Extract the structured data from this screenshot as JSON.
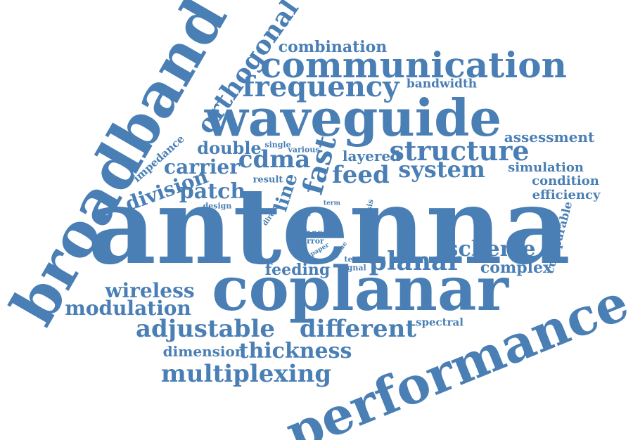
{
  "cloud": {
    "color": "#4a7fb5",
    "words": [
      {
        "text": "antenna",
        "rot": 0
      },
      {
        "text": "broadband",
        "rot": -60
      },
      {
        "text": "coplanar",
        "rot": 0
      },
      {
        "text": "performance",
        "rot": -22
      },
      {
        "text": "waveguide",
        "rot": 0
      },
      {
        "text": "communication",
        "rot": 0
      },
      {
        "text": "orthogonal",
        "rot": -55
      },
      {
        "text": "frequency",
        "rot": 0
      },
      {
        "text": "combination",
        "rot": 0
      },
      {
        "text": "bandwidth",
        "rot": 0
      },
      {
        "text": "structure",
        "rot": 0
      },
      {
        "text": "system",
        "rot": 0
      },
      {
        "text": "fast",
        "rot": -75
      },
      {
        "text": "feed",
        "rot": 0
      },
      {
        "text": "cdma",
        "rot": 0
      },
      {
        "text": "carrier",
        "rot": 0
      },
      {
        "text": "double",
        "rot": 0
      },
      {
        "text": "layered",
        "rot": 0
      },
      {
        "text": "patch",
        "rot": 0
      },
      {
        "text": "division",
        "rot": -20
      },
      {
        "text": "impedance",
        "rot": -42
      },
      {
        "text": "line",
        "rot": -72
      },
      {
        "text": "single",
        "rot": 0
      },
      {
        "text": "various",
        "rot": 0
      },
      {
        "text": "result",
        "rot": 0
      },
      {
        "text": "design",
        "rot": 0
      },
      {
        "text": "direct",
        "rot": -55
      },
      {
        "text": "loss",
        "rot": 0
      },
      {
        "text": "term",
        "rot": 0
      },
      {
        "text": "analysis",
        "rot": -80
      },
      {
        "text": "thesis",
        "rot": 0
      },
      {
        "text": "error",
        "rot": 0
      },
      {
        "text": "paper",
        "rot": -30
      },
      {
        "text": "issue",
        "rot": -55
      },
      {
        "text": "testing",
        "rot": 0
      },
      {
        "text": "signal",
        "rot": 0
      },
      {
        "text": "assessment",
        "rot": 0
      },
      {
        "text": "simulation",
        "rot": 0
      },
      {
        "text": "condition",
        "rot": 0
      },
      {
        "text": "efficiency",
        "rot": 0
      },
      {
        "text": "comparable",
        "rot": -75
      },
      {
        "text": "scheme",
        "rot": 0
      },
      {
        "text": "planar",
        "rot": 0
      },
      {
        "text": "complex",
        "rot": 0
      },
      {
        "text": "feeding",
        "rot": 0
      },
      {
        "text": "wireless",
        "rot": 0
      },
      {
        "text": "modulation",
        "rot": 0
      },
      {
        "text": "adjustable",
        "rot": 0
      },
      {
        "text": "different",
        "rot": 0
      },
      {
        "text": "spectral",
        "rot": 0
      },
      {
        "text": "dimension",
        "rot": 0
      },
      {
        "text": "thickness",
        "rot": 0
      },
      {
        "text": "multiplexing",
        "rot": 0
      }
    ]
  }
}
